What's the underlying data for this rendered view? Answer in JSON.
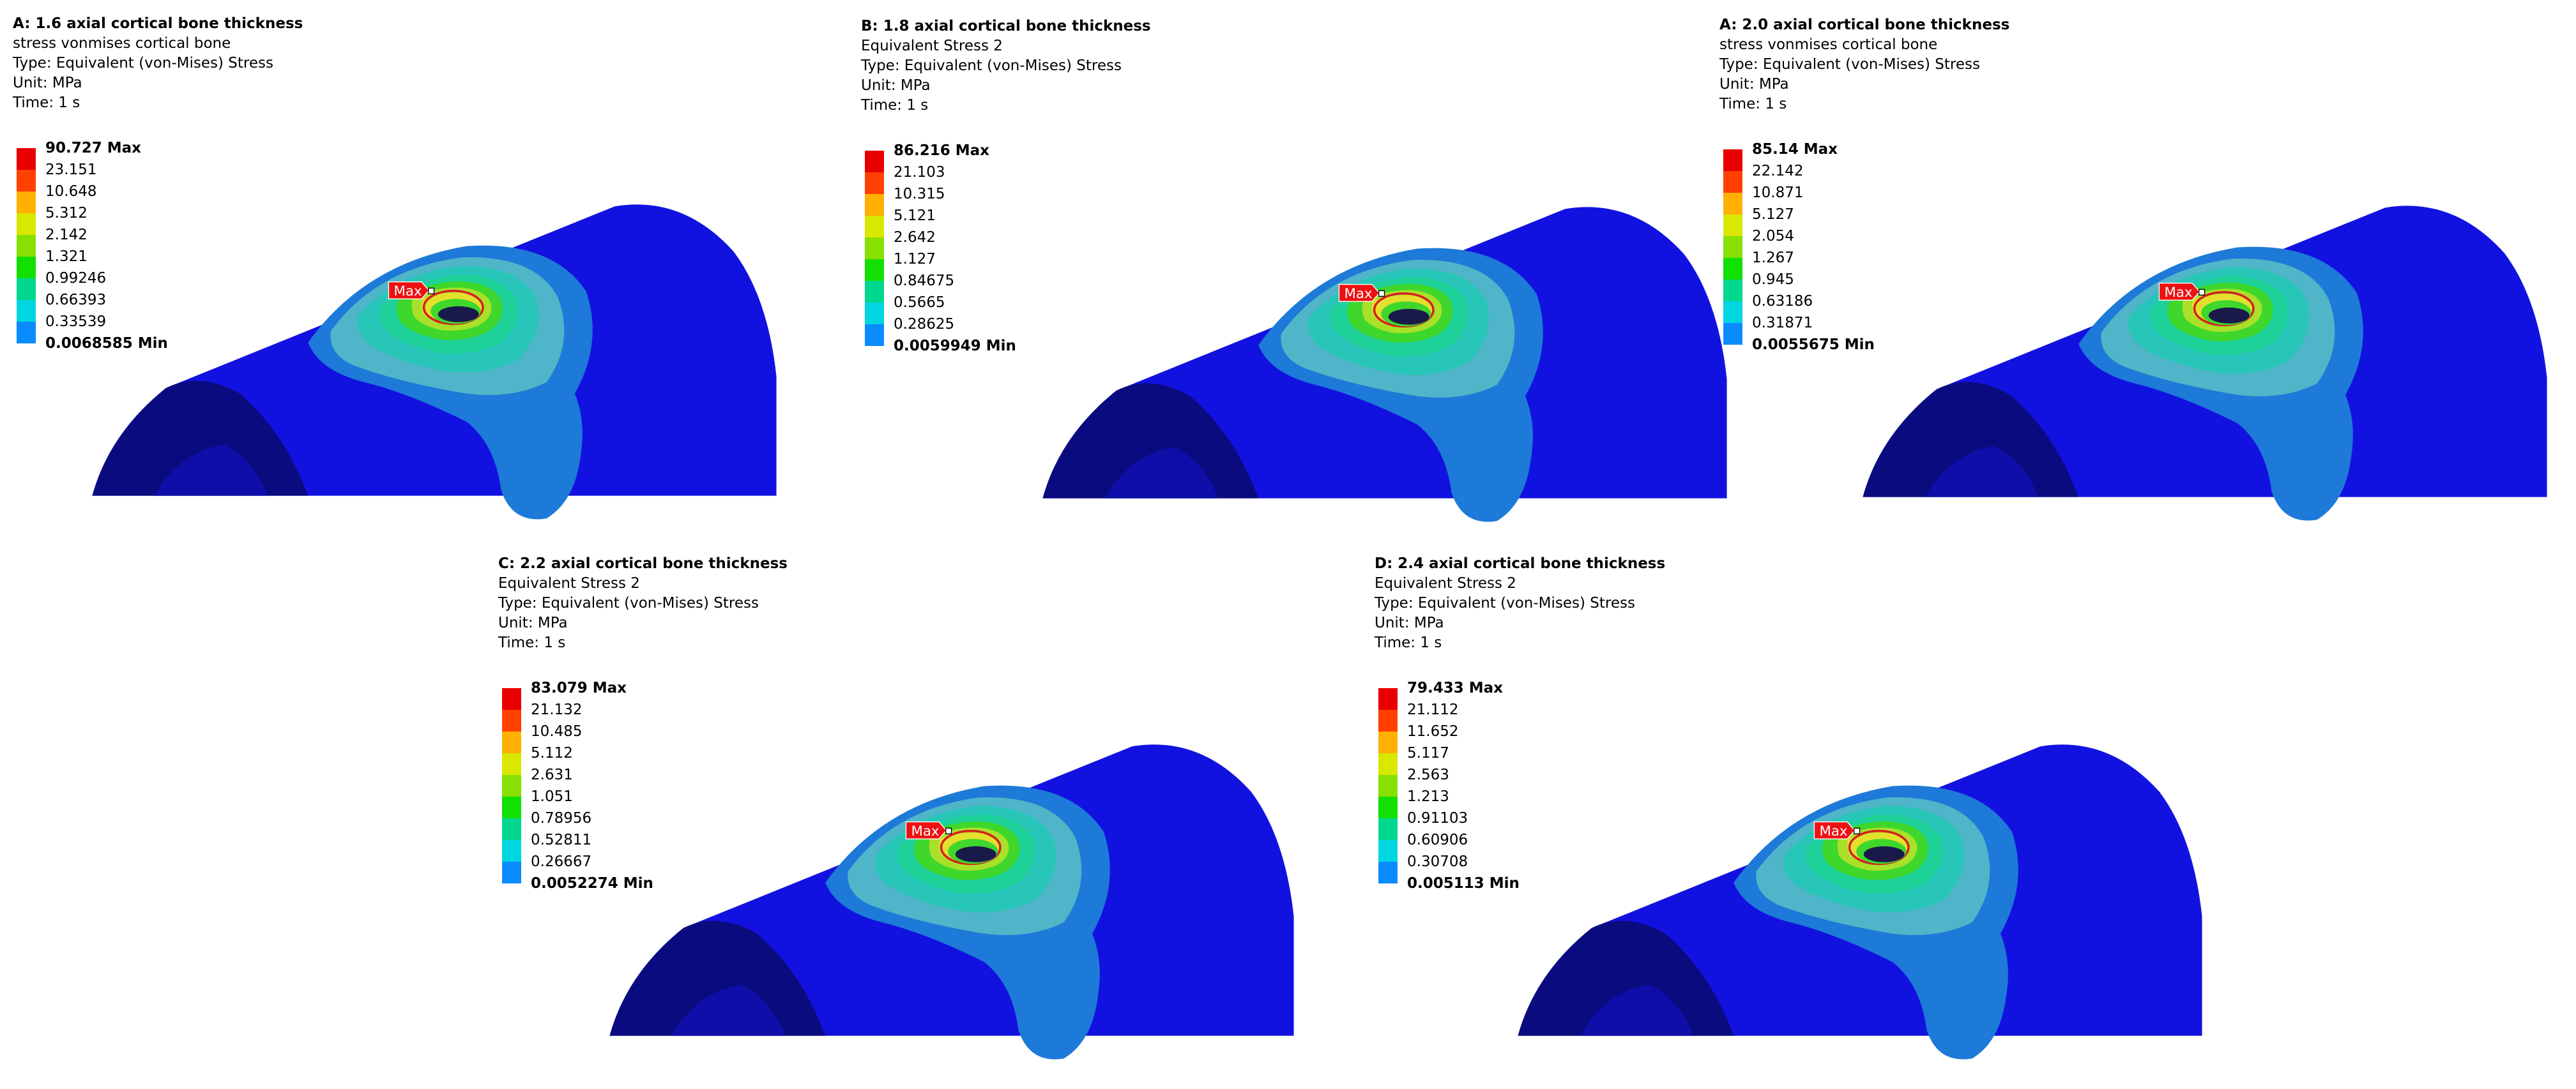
{
  "colors": {
    "legend": [
      "#0000ff",
      "#0a8cff",
      "#00d6e0",
      "#00d890",
      "#11e000",
      "#88e000",
      "#d8e800",
      "#ffb000",
      "#ff4000",
      "#e80000"
    ],
    "band_outer": "#1d7ad8",
    "band_light": "#4fb5c8",
    "band_cyan": "#27c6b8",
    "band_teal": "#1fd29a",
    "band_green": "#3fd72c",
    "band_ygreen": "#a8e02a",
    "band_yellow": "#e2e02c",
    "band_red": "#d32020",
    "base": "#1212e0",
    "end_dark": "#0b0b80",
    "hole_dark": "#1a1a4a",
    "max_tag": "#ee1111"
  },
  "panels": [
    {
      "title": "A: 1.6 axial cortical bone thickness",
      "subtitle": "stress vonmises cortical bone",
      "type_line": "Type: Equivalent (von-Mises) Stress",
      "unit_line": "Unit: MPa",
      "time_line": "Time: 1 s",
      "legend_values": [
        "90.727 Max",
        "23.151",
        "10.648",
        "5.312",
        "2.142",
        "1.321",
        "0.99246",
        "0.66393",
        "0.33539",
        "0.0068585 Min"
      ],
      "max_tag": "Max"
    },
    {
      "title": "B: 1.8 axial cortical bone thickness",
      "subtitle": "Equivalent Stress 2",
      "type_line": "Type: Equivalent (von-Mises) Stress",
      "unit_line": "Unit: MPa",
      "time_line": "Time: 1 s",
      "legend_values": [
        "86.216 Max",
        "21.103",
        "10.315",
        "5.121",
        "2.642",
        "1.127",
        "0.84675",
        "0.5665",
        "0.28625",
        "0.0059949 Min"
      ],
      "max_tag": "Max"
    },
    {
      "title": "A: 2.0 axial cortical bone thickness",
      "subtitle": "stress vonmises cortical bone",
      "type_line": "Type: Equivalent (von-Mises) Stress",
      "unit_line": "Unit: MPa",
      "time_line": "Time: 1 s",
      "legend_values": [
        "85.14 Max",
        "22.142",
        "10.871",
        "5.127",
        "2.054",
        "1.267",
        "0.945",
        "0.63186",
        "0.31871",
        "0.0055675 Min"
      ],
      "max_tag": "Max"
    },
    {
      "title": "C: 2.2 axial cortical bone thickness",
      "subtitle": "Equivalent Stress 2",
      "type_line": "Type: Equivalent (von-Mises) Stress",
      "unit_line": "Unit: MPa",
      "time_line": "Time: 1 s",
      "legend_values": [
        "83.079 Max",
        "21.132",
        "10.485",
        "5.112",
        "2.631",
        "1.051",
        "0.78956",
        "0.52811",
        "0.26667",
        "0.0052274 Min"
      ],
      "max_tag": "Max"
    },
    {
      "title": "D: 2.4 axial cortical bone thickness",
      "subtitle": "Equivalent Stress 2",
      "type_line": "Type: Equivalent (von-Mises) Stress",
      "unit_line": "Unit: MPa",
      "time_line": "Time: 1 s",
      "legend_values": [
        "79.433 Max",
        "21.112",
        "11.652",
        "5.117",
        "2.563",
        "1.213",
        "0.91103",
        "0.60906",
        "0.30708",
        "0.005113 Min"
      ],
      "max_tag": "Max"
    }
  ]
}
